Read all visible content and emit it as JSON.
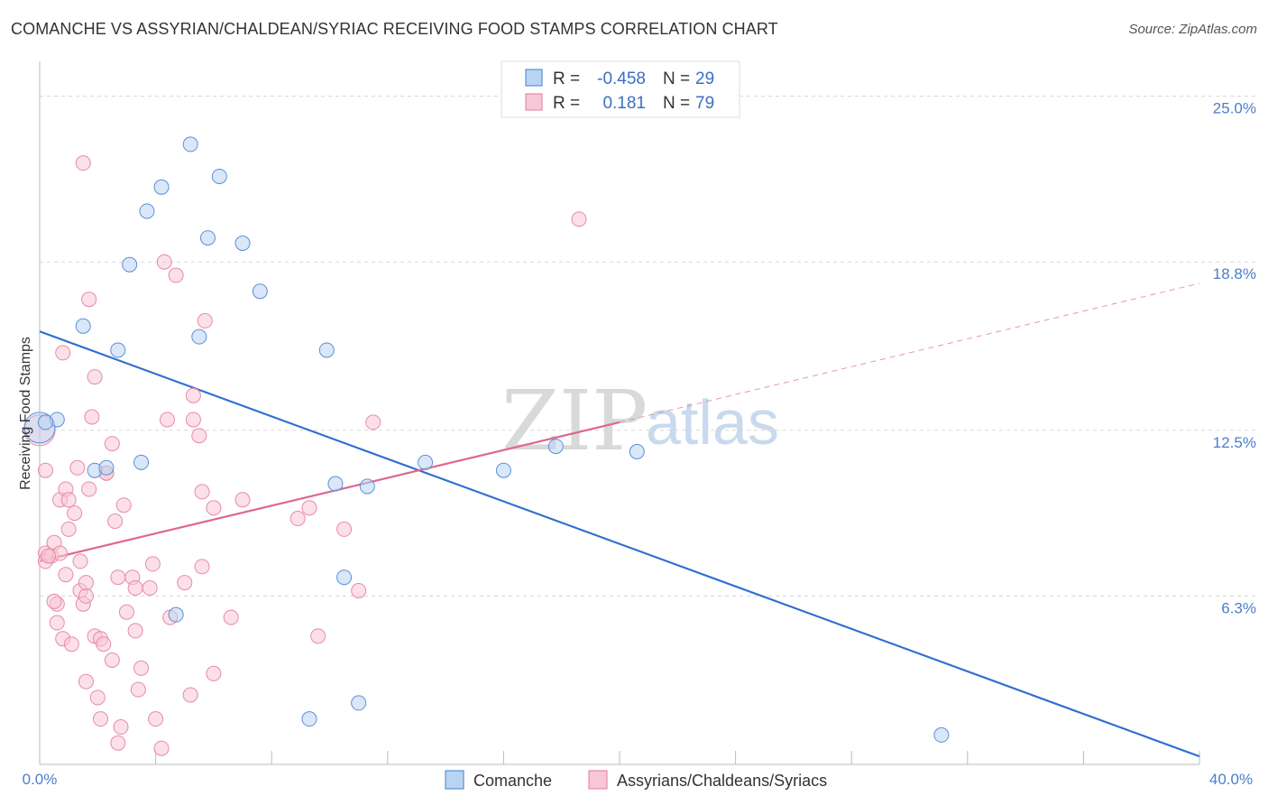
{
  "title": "COMANCHE VS ASSYRIAN/CHALDEAN/SYRIAC RECEIVING FOOD STAMPS CORRELATION CHART",
  "source": "Source: ZipAtlas.com",
  "watermark": {
    "part1": "ZIP",
    "part2": "atlas"
  },
  "colors": {
    "comanche_fill": "#b9d3f3",
    "comanche_stroke": "#5b90d8",
    "comanche_line": "#2f6fd1",
    "assyrian_fill": "#f7c7d6",
    "assyrian_stroke": "#e88aa8",
    "assyrian_line": "#e0668f",
    "grid": "#d8d8d8",
    "axis": "#bbbbbb",
    "tick_text": "#4a7fc9"
  },
  "legend": {
    "r_label": "R =",
    "n_label": "N =",
    "rows": [
      {
        "series": "Comanche",
        "r": "-0.458",
        "n": "29"
      },
      {
        "series": "Assyrians/Chaldeans/Syriacs",
        "r": "0.181",
        "n": "79"
      }
    ]
  },
  "chart_data": {
    "type": "scatter",
    "title": "COMANCHE VS ASSYRIAN/CHALDEAN/SYRIAC RECEIVING FOOD STAMPS CORRELATION CHART",
    "xlabel": "",
    "ylabel": "Receiving Food Stamps",
    "xlim": [
      0,
      40
    ],
    "ylim": [
      0,
      26
    ],
    "x_tick_labels": [
      "0.0%",
      "40.0%"
    ],
    "y_ticks": [
      {
        "value": 6.3,
        "label": "6.3%"
      },
      {
        "value": 12.5,
        "label": "12.5%"
      },
      {
        "value": 18.8,
        "label": "18.8%"
      },
      {
        "value": 25.0,
        "label": "25.0%"
      }
    ],
    "grid": true,
    "legend_position": "bottom-center",
    "series": [
      {
        "name": "Comanche",
        "r": -0.458,
        "n": 29,
        "trend": {
          "x": [
            0,
            40
          ],
          "y": [
            16.2,
            0.3
          ],
          "dashed_extension": false
        },
        "points": [
          [
            0.0,
            12.6
          ],
          [
            0.6,
            12.9
          ],
          [
            1.5,
            16.4
          ],
          [
            1.9,
            11.0
          ],
          [
            2.3,
            11.1
          ],
          [
            2.7,
            15.5
          ],
          [
            3.1,
            18.7
          ],
          [
            3.5,
            11.3
          ],
          [
            3.7,
            20.7
          ],
          [
            4.2,
            21.6
          ],
          [
            4.7,
            5.6
          ],
          [
            5.2,
            23.2
          ],
          [
            5.5,
            16.0
          ],
          [
            5.8,
            19.7
          ],
          [
            6.2,
            22.0
          ],
          [
            7.0,
            19.5
          ],
          [
            7.6,
            17.7
          ],
          [
            9.3,
            1.7
          ],
          [
            9.9,
            15.5
          ],
          [
            10.2,
            10.5
          ],
          [
            10.5,
            7.0
          ],
          [
            11.0,
            2.3
          ],
          [
            11.3,
            10.4
          ],
          [
            13.3,
            11.3
          ],
          [
            16.0,
            11.0
          ],
          [
            17.8,
            11.9
          ],
          [
            20.6,
            11.7
          ],
          [
            31.1,
            1.1
          ],
          [
            0.2,
            12.8
          ]
        ]
      },
      {
        "name": "Assyrians/Chaldeans/Syriacs",
        "r": 0.181,
        "n": 79,
        "trend": {
          "x": [
            0,
            20
          ],
          "y": [
            7.6,
            12.8
          ],
          "dashed_extension": true,
          "extension_x": [
            20,
            40
          ],
          "extension_y": [
            12.8,
            18.0
          ]
        },
        "points": [
          [
            0.0,
            12.5
          ],
          [
            0.2,
            11.0
          ],
          [
            0.2,
            7.9
          ],
          [
            0.2,
            7.6
          ],
          [
            0.4,
            7.8
          ],
          [
            0.5,
            8.3
          ],
          [
            0.6,
            6.0
          ],
          [
            0.6,
            5.3
          ],
          [
            0.7,
            9.9
          ],
          [
            0.7,
            7.9
          ],
          [
            0.8,
            15.4
          ],
          [
            0.8,
            4.7
          ],
          [
            0.9,
            7.1
          ],
          [
            0.9,
            10.3
          ],
          [
            1.0,
            8.8
          ],
          [
            1.1,
            4.5
          ],
          [
            1.2,
            9.4
          ],
          [
            1.3,
            11.1
          ],
          [
            1.4,
            6.5
          ],
          [
            1.4,
            7.6
          ],
          [
            1.5,
            6.0
          ],
          [
            1.5,
            22.5
          ],
          [
            1.6,
            6.3
          ],
          [
            1.6,
            6.8
          ],
          [
            1.6,
            3.1
          ],
          [
            1.7,
            10.3
          ],
          [
            1.7,
            17.4
          ],
          [
            1.8,
            13.0
          ],
          [
            1.9,
            14.5
          ],
          [
            1.9,
            4.8
          ],
          [
            2.0,
            2.5
          ],
          [
            2.1,
            1.7
          ],
          [
            2.1,
            4.7
          ],
          [
            2.2,
            4.5
          ],
          [
            2.3,
            10.9
          ],
          [
            2.3,
            10.9
          ],
          [
            2.5,
            12.0
          ],
          [
            2.5,
            3.9
          ],
          [
            2.6,
            9.1
          ],
          [
            2.7,
            0.8
          ],
          [
            2.7,
            7.0
          ],
          [
            2.8,
            1.4
          ],
          [
            2.9,
            9.7
          ],
          [
            3.0,
            5.7
          ],
          [
            3.2,
            7.0
          ],
          [
            3.3,
            6.6
          ],
          [
            3.3,
            5.0
          ],
          [
            3.4,
            2.8
          ],
          [
            3.5,
            3.6
          ],
          [
            3.8,
            6.6
          ],
          [
            3.9,
            7.5
          ],
          [
            4.0,
            1.7
          ],
          [
            4.2,
            0.6
          ],
          [
            4.3,
            18.8
          ],
          [
            4.4,
            12.9
          ],
          [
            4.5,
            5.5
          ],
          [
            4.7,
            18.3
          ],
          [
            5.0,
            6.8
          ],
          [
            5.2,
            2.6
          ],
          [
            5.3,
            13.8
          ],
          [
            5.3,
            12.9
          ],
          [
            5.5,
            12.3
          ],
          [
            5.6,
            7.4
          ],
          [
            5.6,
            10.2
          ],
          [
            5.7,
            16.6
          ],
          [
            6.0,
            9.6
          ],
          [
            6.0,
            3.4
          ],
          [
            6.6,
            5.5
          ],
          [
            7.0,
            9.9
          ],
          [
            8.9,
            9.2
          ],
          [
            9.3,
            9.6
          ],
          [
            9.6,
            4.8
          ],
          [
            10.5,
            8.8
          ],
          [
            11.0,
            6.5
          ],
          [
            11.5,
            12.8
          ],
          [
            18.6,
            20.4
          ],
          [
            0.3,
            7.8
          ],
          [
            1.0,
            9.9
          ],
          [
            0.5,
            6.1
          ]
        ]
      }
    ]
  }
}
